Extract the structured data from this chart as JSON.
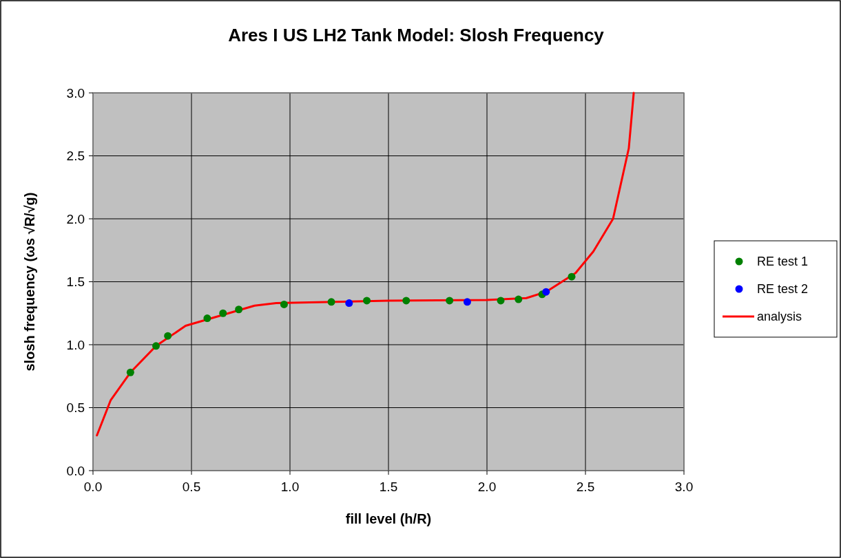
{
  "chart_data": {
    "type": "scatter",
    "title": "Ares I US LH2 Tank Model: Slosh Frequency",
    "xlabel": "fill level (h/R)",
    "ylabel": "slosh frequency (ωs √R/√g)",
    "xlim": [
      0,
      3
    ],
    "xticks": [
      {
        "value": 0,
        "label": "0.0"
      },
      {
        "value": 0.5,
        "label": "0.5"
      },
      {
        "value": 1,
        "label": "1.0"
      },
      {
        "value": 1.5,
        "label": "1.5"
      },
      {
        "value": 2,
        "label": "2.0"
      },
      {
        "value": 2.5,
        "label": "2.5"
      },
      {
        "value": 3,
        "label": "3.0"
      }
    ],
    "ylim": [
      0,
      3
    ],
    "yticks": [
      {
        "value": 0,
        "label": "0.0"
      },
      {
        "value": 0.5,
        "label": "0.5"
      },
      {
        "value": 1,
        "label": "1.0"
      },
      {
        "value": 1.5,
        "label": "1.5"
      },
      {
        "value": 2,
        "label": "2.0"
      },
      {
        "value": 2.5,
        "label": "2.5"
      },
      {
        "value": 3,
        "label": "3.0"
      }
    ],
    "grid": true,
    "legend": "right",
    "marker": "circle",
    "series": [
      {
        "name": "RE test 1",
        "color": "#008000",
        "x": [
          0.19,
          0.32,
          0.38,
          0.58,
          0.66,
          0.74,
          0.97,
          1.21,
          1.39,
          1.59,
          1.81,
          2.07,
          2.16,
          2.28,
          2.43
        ],
        "values": [
          0.78,
          0.99,
          1.07,
          1.21,
          1.25,
          1.28,
          1.32,
          1.34,
          1.35,
          1.35,
          1.35,
          1.35,
          1.36,
          1.4,
          1.54
        ]
      },
      {
        "name": "RE test 2",
        "color": "#0000ff",
        "x": [
          1.3,
          1.9,
          2.3
        ],
        "values": [
          1.33,
          1.34,
          1.42
        ]
      },
      {
        "name": "analysis",
        "type": "line",
        "color": "#ff0000",
        "marker": "none",
        "line_style": "solid",
        "x": [
          0.02,
          0.09,
          0.19,
          0.32,
          0.47,
          0.82,
          0.93,
          1.5,
          2.0,
          2.2,
          2.3,
          2.45,
          2.54,
          2.64,
          2.72,
          2.745
        ],
        "values": [
          0.28,
          0.56,
          0.78,
          0.99,
          1.15,
          1.31,
          1.33,
          1.35,
          1.355,
          1.37,
          1.42,
          1.57,
          1.74,
          2.0,
          2.56,
          3.0
        ]
      }
    ]
  }
}
